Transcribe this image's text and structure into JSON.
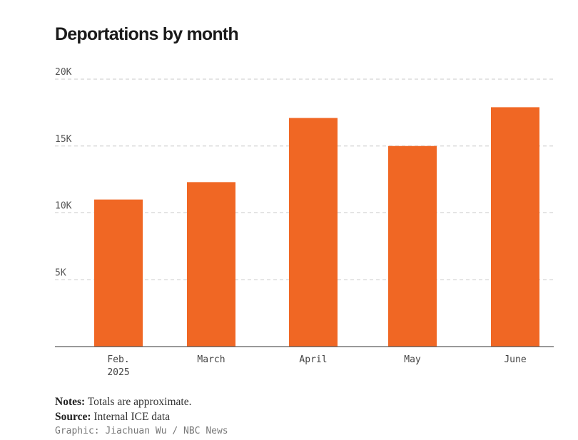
{
  "chart_data": {
    "type": "bar",
    "title": "Deportations by month",
    "categories": [
      "Feb.\n2025",
      "March",
      "April",
      "May",
      "June"
    ],
    "values": [
      11000,
      12300,
      17100,
      15000,
      17900
    ],
    "ylim": [
      0,
      20000
    ],
    "yticks": [
      5000,
      10000,
      15000,
      20000
    ],
    "ytick_labels": [
      "5K",
      "10K",
      "15K",
      "20K"
    ],
    "xlabel": "",
    "ylabel": "",
    "grid": "dashed-horizontal",
    "bar_color": "#f06724"
  },
  "notes": {
    "notes_label": "Notes:",
    "notes_text": "Totals are approximate.",
    "source_label": "Source:",
    "source_text": "Internal ICE data",
    "credit": "Graphic: Jiachuan Wu / NBC News"
  }
}
